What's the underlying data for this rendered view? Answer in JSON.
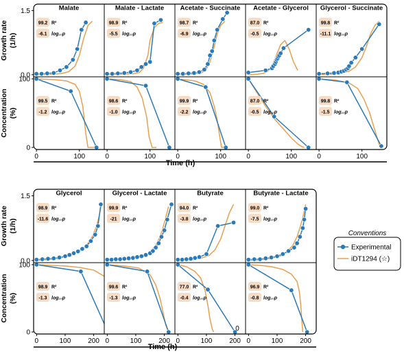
{
  "colors": {
    "experimental": "#2A7AB8",
    "model": "#E8A050",
    "stat_box": "#F6DCC4"
  },
  "rows": [
    {
      "id": "top",
      "x_label": "Time (h)",
      "x_ticks": [
        {
          "value": 0,
          "label": "0"
        },
        {
          "value": 100,
          "label": "100"
        }
      ],
      "x_range": [
        -5,
        150
      ],
      "growth_y_label": [
        "Growth rate",
        "(1/h)"
      ],
      "growth_ticks": [
        {
          "value": 1.5,
          "label": "1.5"
        },
        {
          "value": 0,
          "label": "0.0"
        }
      ],
      "growth_range": [
        -0.05,
        1.65
      ],
      "conc_y_label": [
        "Concentration",
        "(%)"
      ],
      "conc_ticks": [
        {
          "value": 100,
          "label": "100"
        },
        {
          "value": 0,
          "label": "0"
        }
      ],
      "conc_range": [
        -3,
        103
      ]
    },
    {
      "id": "bottom",
      "x_label": "Time (h)",
      "x_ticks": [
        {
          "value": 0,
          "label": "0"
        },
        {
          "value": 100,
          "label": "100"
        },
        {
          "value": 200,
          "label": "200"
        }
      ],
      "x_range": [
        -8,
        225
      ],
      "growth_y_label": [
        "Growth rate",
        "(1/h)"
      ],
      "growth_ticks": [
        {
          "value": 1.5,
          "label": "1.5"
        },
        {
          "value": 0,
          "label": "0.0"
        }
      ],
      "growth_range": [
        -0.05,
        1.65
      ],
      "conc_y_label": [
        "Concentration",
        "(%)"
      ],
      "conc_ticks": [
        {
          "value": 100,
          "label": "100"
        },
        {
          "value": 0,
          "label": "0"
        }
      ],
      "conc_range": [
        -3,
        103
      ],
      "stray_label": "0"
    }
  ],
  "legend": {
    "title": "Conventions",
    "items": [
      {
        "label": "Experimental",
        "kind": "experimental"
      },
      {
        "label": "iDT1294 (☆)",
        "kind": "model"
      }
    ]
  },
  "chart_data": [
    {
      "type": "line",
      "title": "Malate",
      "row": 0,
      "growth": {
        "stats": {
          "r2": "99.2",
          "r2_label": "R²",
          "logp": "-6.1",
          "logp_label": "log₁₀p"
        },
        "experimental": {
          "x": [
            0,
            12,
            25,
            40,
            55,
            70,
            85,
            95,
            105,
            115
          ],
          "y": [
            0.02,
            0.02,
            0.03,
            0.04,
            0.1,
            0.18,
            0.35,
            0.6,
            1.05,
            1.22
          ]
        },
        "model": {
          "x": [
            0,
            20,
            40,
            60,
            75,
            90,
            100,
            110,
            120,
            130
          ],
          "y": [
            0,
            0,
            0.01,
            0.03,
            0.07,
            0.2,
            0.45,
            0.85,
            1.15,
            1.25
          ]
        }
      },
      "concentration": {
        "stats": {
          "r2": "99.5",
          "r2_label": "R²",
          "logp": "-1.2",
          "logp_label": "log₁₀p"
        },
        "experimental": {
          "x": [
            0,
            80,
            140
          ],
          "y": [
            100,
            82,
            0
          ]
        },
        "model": {
          "x": [
            0,
            40,
            70,
            90,
            100,
            108,
            115,
            120,
            140
          ],
          "y": [
            100,
            99,
            97,
            92,
            82,
            60,
            20,
            0,
            0
          ]
        }
      }
    },
    {
      "type": "line",
      "title": "Malate - Lactate",
      "row": 0,
      "growth": {
        "stats": {
          "r2": "98.9",
          "r2_label": "R²",
          "logp": "-5.5",
          "logp_label": "log₁₀p"
        },
        "experimental": {
          "x": [
            0,
            12,
            25,
            40,
            55,
            70,
            80,
            90,
            100,
            110,
            125
          ],
          "y": [
            0.02,
            0.02,
            0.03,
            0.04,
            0.06,
            0.1,
            0.18,
            0.25,
            0.3,
            1.2,
            1.28
          ]
        },
        "model": {
          "x": [
            0,
            30,
            60,
            75,
            85,
            95,
            100,
            110,
            120,
            130
          ],
          "y": [
            0,
            0.01,
            0.02,
            0.05,
            0.15,
            0.45,
            0.8,
            1.1,
            1.2,
            1.22
          ]
        }
      },
      "concentration": {
        "stats": {
          "r2": "98.6",
          "r2_label": "R²",
          "logp": "-1.0",
          "logp_label": "log₁₀p"
        },
        "experimental": {
          "x": [
            0,
            90,
            145
          ],
          "y": [
            100,
            90,
            0
          ]
        },
        "model": {
          "x": [
            0,
            30,
            55,
            70,
            82,
            92,
            98,
            105,
            115
          ],
          "y": [
            100,
            99,
            96,
            88,
            72,
            45,
            15,
            0,
            0
          ]
        }
      }
    },
    {
      "type": "line",
      "title": "Acetate - Succinate",
      "row": 0,
      "growth": {
        "stats": {
          "r2": "98.7",
          "r2_label": "R²",
          "logp": "-6.9",
          "logp_label": "log₁₀p"
        },
        "experimental": {
          "x": [
            0,
            12,
            25,
            38,
            50,
            62,
            70,
            75,
            80,
            85,
            92,
            105,
            115
          ],
          "y": [
            0.02,
            0.02,
            0.03,
            0.04,
            0.06,
            0.12,
            0.25,
            0.45,
            0.55,
            0.8,
            1.05,
            1.3,
            1.45
          ]
        },
        "model": {
          "x": [
            0,
            20,
            40,
            55,
            65,
            75,
            85,
            92,
            100,
            110
          ],
          "y": [
            0,
            0.01,
            0.02,
            0.04,
            0.1,
            0.3,
            0.65,
            0.95,
            1.15,
            1.25
          ]
        }
      },
      "concentration": {
        "stats": {
          "r2": "99.9",
          "r2_label": "R²",
          "logp": "-2.2",
          "logp_label": "log₁₀p"
        },
        "experimental": {
          "x": [
            0,
            65,
            112
          ],
          "y": [
            100,
            88,
            0
          ]
        },
        "model": {
          "x": [
            0,
            40,
            60,
            75,
            85,
            92,
            98,
            102,
            115
          ],
          "y": [
            100,
            97,
            92,
            80,
            60,
            40,
            15,
            0,
            0
          ]
        }
      }
    },
    {
      "type": "line",
      "title": "Acetate - Glycerol",
      "row": 0,
      "growth": {
        "stats": {
          "r2": "87.0",
          "r2_label": "R²",
          "logp": "-0.5",
          "logp_label": "log₁₀p"
        },
        "experimental": {
          "x": [
            0,
            40,
            55,
            58,
            62,
            64,
            66,
            68,
            70,
            72,
            75,
            82,
            140
          ],
          "y": [
            0.05,
            0.1,
            0.15,
            0.2,
            0.25,
            0.3,
            0.35,
            0.38,
            0.42,
            0.45,
            0.5,
            0.62,
            1.05
          ]
        },
        "model": {
          "x": [
            0,
            20,
            35,
            45,
            55,
            65,
            75,
            85,
            95,
            105,
            115
          ],
          "y": [
            0,
            0.01,
            0.03,
            0.08,
            0.2,
            0.45,
            0.7,
            0.8,
            0.6,
            0.3,
            0.1
          ]
        }
      },
      "concentration": {
        "stats": {
          "r2": "87.0",
          "r2_label": "R²",
          "logp": "-0.5",
          "logp_label": "log₁₀p"
        },
        "experimental": {
          "x": [
            0,
            60,
            140
          ],
          "y": [
            100,
            45,
            0
          ]
        },
        "model": {
          "x": [
            0,
            20,
            40,
            60,
            80,
            100,
            115,
            125,
            130
          ],
          "y": [
            100,
            80,
            60,
            42,
            28,
            14,
            5,
            1,
            0
          ]
        }
      }
    },
    {
      "type": "line",
      "title": "Glycerol - Succinate",
      "row": 0,
      "growth": {
        "stats": {
          "r2": "99.8",
          "r2_label": "R²",
          "logp": "-11.1",
          "logp_label": "log₁₀p"
        },
        "experimental": {
          "x": [
            0,
            20,
            35,
            45,
            52,
            58,
            63,
            67,
            70,
            75,
            85,
            100,
            140
          ],
          "y": [
            0.02,
            0.03,
            0.04,
            0.05,
            0.07,
            0.09,
            0.12,
            0.15,
            0.2,
            0.28,
            0.4,
            0.6,
            1.18
          ]
        },
        "model": {
          "x": [
            0,
            30,
            50,
            70,
            85,
            100,
            110,
            120,
            130,
            140
          ],
          "y": [
            0,
            0.01,
            0.03,
            0.08,
            0.18,
            0.4,
            0.65,
            0.95,
            1.15,
            1.25
          ]
        }
      },
      "concentration": {
        "stats": {
          "r2": "99.8",
          "r2_label": "R²",
          "logp": "-1.5",
          "logp_label": "log₁₀p"
        },
        "experimental": {
          "x": [
            0,
            65,
            145
          ],
          "y": [
            100,
            95,
            2
          ]
        },
        "model": {
          "x": [
            0,
            40,
            70,
            90,
            105,
            118,
            130,
            140,
            145
          ],
          "y": [
            100,
            98,
            94,
            86,
            70,
            50,
            25,
            5,
            0
          ]
        }
      }
    },
    {
      "type": "line",
      "title": "Glycerol",
      "row": 1,
      "growth": {
        "stats": {
          "r2": "98.9",
          "r2_label": "R²",
          "logp": "-11.6",
          "logp_label": "log₁₀p"
        },
        "experimental": {
          "x": [
            0,
            20,
            40,
            60,
            80,
            100,
            115,
            130,
            145,
            160,
            175,
            190,
            205,
            215,
            225
          ],
          "y": [
            0.02,
            0.03,
            0.04,
            0.05,
            0.07,
            0.1,
            0.13,
            0.17,
            0.21,
            0.27,
            0.33,
            0.45,
            0.6,
            0.8,
            1.3
          ]
        },
        "model": {
          "x": [
            0,
            40,
            80,
            120,
            150,
            175,
            195,
            210,
            220,
            228
          ],
          "y": [
            0,
            0.02,
            0.05,
            0.12,
            0.22,
            0.35,
            0.55,
            0.8,
            1.05,
            1.35
          ]
        }
      },
      "concentration": {
        "stats": {
          "r2": "98.9",
          "r2_label": "R²",
          "logp": "-1.3",
          "logp_label": "log₁₀p"
        },
        "experimental": {
          "x": [
            0,
            155,
            250
          ],
          "y": [
            100,
            90,
            0
          ]
        },
        "model": {
          "x": [
            0,
            50,
            100,
            150,
            200,
            240,
            260,
            275,
            285,
            290
          ],
          "y": [
            100,
            99,
            98,
            96,
            92,
            82,
            70,
            50,
            20,
            0
          ]
        }
      }
    },
    {
      "type": "line",
      "title": "Glycerol - Lactate",
      "row": 1,
      "growth": {
        "stats": {
          "r2": "99.9",
          "r2_label": "R²",
          "logp": "-21",
          "logp_label": "log₁₀p"
        },
        "experimental": {
          "x": [
            0,
            15,
            30,
            45,
            60,
            75,
            90,
            105,
            120,
            135,
            150,
            160,
            170,
            180,
            190,
            200,
            210,
            225
          ],
          "y": [
            0.02,
            0.02,
            0.03,
            0.03,
            0.04,
            0.05,
            0.06,
            0.08,
            0.1,
            0.13,
            0.17,
            0.22,
            0.3,
            0.4,
            0.55,
            0.7,
            0.95,
            1.3
          ]
        },
        "model": {
          "x": [
            0,
            50,
            100,
            130,
            150,
            170,
            185,
            195,
            205,
            215
          ],
          "y": [
            0,
            0.01,
            0.05,
            0.1,
            0.2,
            0.35,
            0.55,
            0.75,
            1.0,
            1.25
          ]
        }
      },
      "concentration": {
        "stats": {
          "r2": "99.6",
          "r2_label": "R²",
          "logp": "-1.3",
          "logp_label": "log₁₀p"
        },
        "experimental": {
          "x": [
            0,
            140,
            215
          ],
          "y": [
            100,
            90,
            0
          ]
        },
        "model": {
          "x": [
            0,
            60,
            110,
            150,
            170,
            185,
            195,
            205,
            215
          ],
          "y": [
            100,
            98,
            95,
            85,
            70,
            50,
            30,
            10,
            0
          ]
        }
      }
    },
    {
      "type": "line",
      "title": "Butyrate",
      "row": 1,
      "growth": {
        "stats": {
          "r2": "94.0",
          "r2_label": "R²",
          "logp": "-3.8",
          "logp_label": "log₁₀p"
        },
        "experimental": {
          "x": [
            0,
            15,
            30,
            45,
            60,
            75,
            100,
            140,
            195
          ],
          "y": [
            0.02,
            0.02,
            0.03,
            0.04,
            0.06,
            0.08,
            0.15,
            0.8,
            0.88
          ]
        },
        "model": {
          "x": [
            0,
            40,
            80,
            110,
            130,
            150,
            165,
            180,
            195
          ],
          "y": [
            0,
            0.01,
            0.05,
            0.12,
            0.25,
            0.5,
            0.8,
            1.1,
            1.3
          ]
        }
      },
      "concentration": {
        "stats": {
          "r2": "77.0",
          "r2_label": "R²",
          "logp": "-0.4",
          "logp_label": "log₁₀p"
        },
        "experimental": {
          "x": [
            0,
            105,
            200
          ],
          "y": [
            100,
            63,
            0
          ]
        },
        "model": {
          "x": [
            0,
            30,
            60,
            80,
            95,
            105,
            112,
            120,
            125
          ],
          "y": [
            100,
            97,
            90,
            80,
            62,
            40,
            20,
            5,
            0
          ]
        }
      }
    },
    {
      "type": "line",
      "title": "Butyrate - Lactate",
      "row": 1,
      "growth": {
        "stats": {
          "r2": "99.0",
          "r2_label": "R²",
          "logp": "-7.5",
          "logp_label": "log₁₀p"
        },
        "experimental": {
          "x": [
            0,
            20,
            40,
            60,
            80,
            100,
            120,
            140,
            160,
            170,
            180,
            190,
            195,
            200
          ],
          "y": [
            0.02,
            0.03,
            0.03,
            0.05,
            0.07,
            0.1,
            0.15,
            0.22,
            0.3,
            0.4,
            0.55,
            0.75,
            0.95,
            1.2
          ]
        },
        "model": {
          "x": [
            0,
            40,
            80,
            110,
            135,
            155,
            170,
            182,
            192,
            200
          ],
          "y": [
            0,
            0.01,
            0.05,
            0.1,
            0.2,
            0.35,
            0.55,
            0.8,
            1.05,
            1.3
          ]
        }
      },
      "concentration": {
        "stats": {
          "r2": "96.9",
          "r2_label": "R²",
          "logp": "-0.8",
          "logp_label": "log₁₀p"
        },
        "experimental": {
          "x": [
            0,
            150,
            205
          ],
          "y": [
            100,
            62,
            0
          ]
        },
        "model": {
          "x": [
            0,
            40,
            80,
            120,
            150,
            170,
            178,
            183,
            187,
            190
          ],
          "y": [
            100,
            99,
            97,
            93,
            86,
            75,
            60,
            40,
            15,
            0
          ]
        }
      }
    }
  ]
}
